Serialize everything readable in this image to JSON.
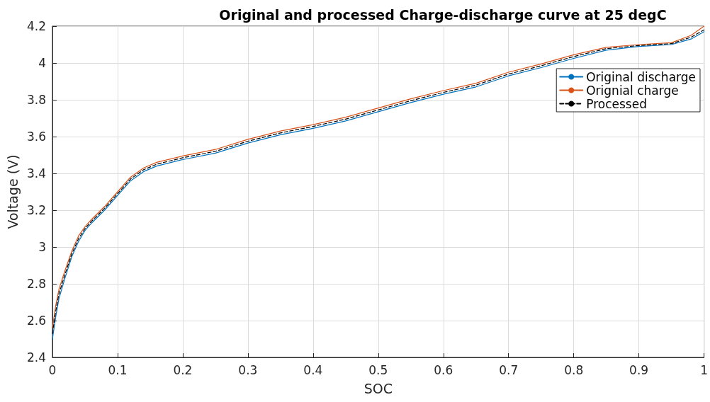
{
  "chart_data": {
    "type": "line",
    "title": "Original and processed Charge-discharge curve at 25 degC",
    "xlabel": "SOC",
    "ylabel": "Voltage (V)",
    "x": [
      0,
      0.005,
      0.01,
      0.02,
      0.03,
      0.04,
      0.05,
      0.06,
      0.08,
      0.1,
      0.12,
      0.14,
      0.16,
      0.2,
      0.25,
      0.3,
      0.35,
      0.4,
      0.45,
      0.5,
      0.55,
      0.6,
      0.65,
      0.7,
      0.75,
      0.8,
      0.85,
      0.9,
      0.95,
      0.98,
      1
    ],
    "series": [
      {
        "name": "Original discharge",
        "color": "#0072bd",
        "line_style": "solid",
        "values": [
          2.5,
          2.62,
          2.72,
          2.84,
          2.95,
          3.03,
          3.09,
          3.13,
          3.2,
          3.28,
          3.36,
          3.41,
          3.44,
          3.475,
          3.51,
          3.565,
          3.61,
          3.645,
          3.685,
          3.735,
          3.785,
          3.83,
          3.87,
          3.93,
          3.975,
          4.025,
          4.07,
          4.09,
          4.1,
          4.13,
          4.17
        ]
      },
      {
        "name": "Orignial charge",
        "color": "#d95319",
        "line_style": "solid",
        "values": [
          2.56,
          2.68,
          2.77,
          2.88,
          2.98,
          3.06,
          3.11,
          3.15,
          3.22,
          3.3,
          3.38,
          3.43,
          3.46,
          3.495,
          3.53,
          3.585,
          3.63,
          3.665,
          3.705,
          3.755,
          3.805,
          3.85,
          3.89,
          3.95,
          3.995,
          4.045,
          4.085,
          4.1,
          4.11,
          4.15,
          4.2
        ]
      },
      {
        "name": "Processed",
        "color": "#000000",
        "line_style": "dashed",
        "values": [
          2.53,
          2.65,
          2.745,
          2.86,
          2.965,
          3.045,
          3.1,
          3.14,
          3.21,
          3.29,
          3.37,
          3.42,
          3.45,
          3.485,
          3.52,
          3.575,
          3.62,
          3.655,
          3.695,
          3.745,
          3.795,
          3.84,
          3.88,
          3.94,
          3.985,
          4.035,
          4.078,
          4.095,
          4.105,
          4.14,
          4.18
        ]
      }
    ],
    "xlim": [
      0,
      1
    ],
    "xticks": [
      0,
      0.1,
      0.2,
      0.3,
      0.4,
      0.5,
      0.6,
      0.7,
      0.8,
      0.9,
      1
    ],
    "ylim": [
      2.4,
      4.2
    ],
    "yticks": [
      2.4,
      2.6,
      2.8,
      3,
      3.2,
      3.4,
      3.6,
      3.8,
      4,
      4.2
    ],
    "grid": true,
    "legend": "top right",
    "marker": "none"
  }
}
